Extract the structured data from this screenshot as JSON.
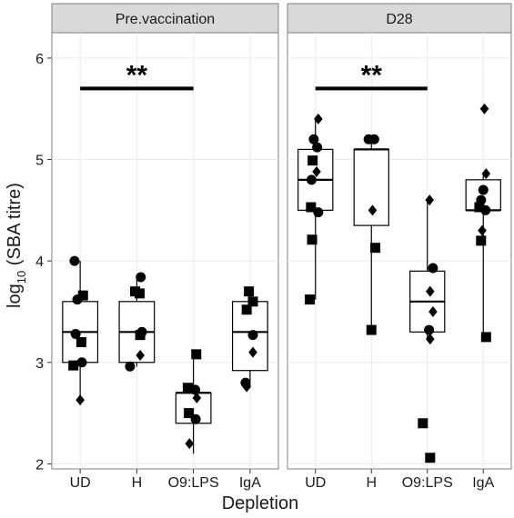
{
  "chart_data": {
    "type": "box",
    "xlabel": "Depletion",
    "ylabel_main": "log",
    "ylabel_sub": "10",
    "ylabel_rest": " (SBA titre)",
    "ylim": [
      1.95,
      6.25
    ],
    "yticks": [
      2,
      3,
      4,
      5,
      6
    ],
    "categories": [
      "UD",
      "H",
      "O9:LPS",
      "IgA"
    ],
    "grid": true,
    "panels": [
      {
        "name": "Pre.vaccination",
        "significance": {
          "from": "UD",
          "to": "O9:LPS",
          "y": 5.7,
          "label": "**"
        },
        "boxes": [
          {
            "category": "UD",
            "q1": 3.0,
            "median": 3.3,
            "q3": 3.6,
            "lower": 2.63,
            "upper": 4.0
          },
          {
            "category": "H",
            "q1": 3.0,
            "median": 3.3,
            "q3": 3.6,
            "lower": 2.96,
            "upper": 3.84
          },
          {
            "category": "O9:LPS",
            "q1": 2.4,
            "median": 2.7,
            "q3": 2.7,
            "lower": 2.1,
            "upper": 3.08
          },
          {
            "category": "IgA",
            "q1": 2.92,
            "median": 3.3,
            "q3": 3.6,
            "lower": 2.75,
            "upper": 3.7
          }
        ],
        "points": [
          {
            "category": "UD",
            "dx": -0.1,
            "y": 4.0,
            "shape": "circle"
          },
          {
            "category": "UD",
            "dx": 0.05,
            "y": 3.66,
            "shape": "square"
          },
          {
            "category": "UD",
            "dx": -0.05,
            "y": 3.62,
            "shape": "circle"
          },
          {
            "category": "UD",
            "dx": -0.08,
            "y": 3.28,
            "shape": "circle"
          },
          {
            "category": "UD",
            "dx": 0.02,
            "y": 3.2,
            "shape": "square"
          },
          {
            "category": "UD",
            "dx": 0.03,
            "y": 3.0,
            "shape": "circle"
          },
          {
            "category": "UD",
            "dx": -0.12,
            "y": 2.97,
            "shape": "square"
          },
          {
            "category": "UD",
            "dx": 0.0,
            "y": 2.63,
            "shape": "diamond"
          },
          {
            "category": "H",
            "dx": 0.07,
            "y": 3.84,
            "shape": "circle"
          },
          {
            "category": "H",
            "dx": -0.03,
            "y": 3.7,
            "shape": "square"
          },
          {
            "category": "H",
            "dx": 0.05,
            "y": 3.68,
            "shape": "square"
          },
          {
            "category": "H",
            "dx": 0.09,
            "y": 3.3,
            "shape": "circle"
          },
          {
            "category": "H",
            "dx": 0.06,
            "y": 3.27,
            "shape": "square"
          },
          {
            "category": "H",
            "dx": 0.06,
            "y": 3.07,
            "shape": "diamond"
          },
          {
            "category": "H",
            "dx": -0.12,
            "y": 2.96,
            "shape": "circle"
          },
          {
            "category": "O9:LPS",
            "dx": 0.05,
            "y": 3.08,
            "shape": "square"
          },
          {
            "category": "O9:LPS",
            "dx": -0.1,
            "y": 2.75,
            "shape": "square"
          },
          {
            "category": "O9:LPS",
            "dx": 0.03,
            "y": 2.73,
            "shape": "circle"
          },
          {
            "category": "O9:LPS",
            "dx": 0.06,
            "y": 2.65,
            "shape": "diamond"
          },
          {
            "category": "O9:LPS",
            "dx": -0.08,
            "y": 2.5,
            "shape": "square"
          },
          {
            "category": "O9:LPS",
            "dx": 0.04,
            "y": 2.44,
            "shape": "circle"
          },
          {
            "category": "O9:LPS",
            "dx": -0.07,
            "y": 2.2,
            "shape": "diamond"
          },
          {
            "category": "IgA",
            "dx": -0.02,
            "y": 3.7,
            "shape": "square"
          },
          {
            "category": "IgA",
            "dx": -0.06,
            "y": 3.52,
            "shape": "square"
          },
          {
            "category": "IgA",
            "dx": 0.05,
            "y": 3.6,
            "shape": "square"
          },
          {
            "category": "IgA",
            "dx": 0.05,
            "y": 3.27,
            "shape": "circle"
          },
          {
            "category": "IgA",
            "dx": 0.05,
            "y": 3.1,
            "shape": "diamond"
          },
          {
            "category": "IgA",
            "dx": -0.08,
            "y": 2.8,
            "shape": "circle"
          },
          {
            "category": "IgA",
            "dx": -0.06,
            "y": 2.76,
            "shape": "diamond"
          }
        ]
      },
      {
        "name": "D28",
        "significance": {
          "from": "UD",
          "to": "O9:LPS",
          "y": 5.7,
          "label": "**"
        },
        "boxes": [
          {
            "category": "UD",
            "q1": 4.5,
            "median": 4.8,
            "q3": 5.1,
            "lower": 3.62,
            "upper": 5.4
          },
          {
            "category": "H",
            "q1": 4.35,
            "median": 5.1,
            "q3": 5.1,
            "lower": 3.32,
            "upper": 5.2
          },
          {
            "category": "O9:LPS",
            "q1": 3.3,
            "median": 3.6,
            "q3": 3.9,
            "lower": 3.22,
            "upper": 4.6
          },
          {
            "category": "IgA",
            "q1": 4.5,
            "median": 4.5,
            "q3": 4.8,
            "lower": 3.25,
            "upper": 4.85
          }
        ],
        "points": [
          {
            "category": "UD",
            "dx": 0.05,
            "y": 5.4,
            "shape": "diamond"
          },
          {
            "category": "UD",
            "dx": -0.03,
            "y": 5.2,
            "shape": "circle"
          },
          {
            "category": "UD",
            "dx": 0.03,
            "y": 5.12,
            "shape": "circle"
          },
          {
            "category": "UD",
            "dx": -0.05,
            "y": 4.99,
            "shape": "square"
          },
          {
            "category": "UD",
            "dx": 0.02,
            "y": 4.88,
            "shape": "diamond"
          },
          {
            "category": "UD",
            "dx": -0.07,
            "y": 4.8,
            "shape": "circle"
          },
          {
            "category": "UD",
            "dx": -0.08,
            "y": 4.53,
            "shape": "square"
          },
          {
            "category": "UD",
            "dx": 0.05,
            "y": 4.48,
            "shape": "circle"
          },
          {
            "category": "UD",
            "dx": -0.06,
            "y": 4.21,
            "shape": "square"
          },
          {
            "category": "UD",
            "dx": -0.1,
            "y": 3.62,
            "shape": "square"
          },
          {
            "category": "H",
            "dx": -0.05,
            "y": 5.2,
            "shape": "circle"
          },
          {
            "category": "H",
            "dx": 0.05,
            "y": 5.2,
            "shape": "circle"
          },
          {
            "category": "H",
            "dx": 0.02,
            "y": 4.5,
            "shape": "diamond"
          },
          {
            "category": "H",
            "dx": 0.07,
            "y": 4.13,
            "shape": "square"
          },
          {
            "category": "H",
            "dx": 0.0,
            "y": 3.32,
            "shape": "square"
          },
          {
            "category": "O9:LPS",
            "dx": 0.04,
            "y": 4.6,
            "shape": "diamond"
          },
          {
            "category": "O9:LPS",
            "dx": 0.1,
            "y": 3.93,
            "shape": "circle"
          },
          {
            "category": "O9:LPS",
            "dx": 0.05,
            "y": 3.7,
            "shape": "diamond"
          },
          {
            "category": "O9:LPS",
            "dx": 0.1,
            "y": 3.5,
            "shape": "diamond"
          },
          {
            "category": "O9:LPS",
            "dx": 0.03,
            "y": 3.32,
            "shape": "circle"
          },
          {
            "category": "O9:LPS",
            "dx": 0.05,
            "y": 3.23,
            "shape": "diamond"
          },
          {
            "category": "O9:LPS",
            "dx": -0.08,
            "y": 2.4,
            "shape": "square"
          },
          {
            "category": "O9:LPS",
            "dx": 0.05,
            "y": 2.06,
            "shape": "square"
          },
          {
            "category": "IgA",
            "dx": 0.02,
            "y": 5.5,
            "shape": "diamond"
          },
          {
            "category": "IgA",
            "dx": 0.05,
            "y": 4.86,
            "shape": "diamond"
          },
          {
            "category": "IgA",
            "dx": 0.0,
            "y": 4.7,
            "shape": "circle"
          },
          {
            "category": "IgA",
            "dx": -0.04,
            "y": 4.6,
            "shape": "circle"
          },
          {
            "category": "IgA",
            "dx": -0.07,
            "y": 4.53,
            "shape": "square"
          },
          {
            "category": "IgA",
            "dx": 0.04,
            "y": 4.5,
            "shape": "circle"
          },
          {
            "category": "IgA",
            "dx": -0.02,
            "y": 4.3,
            "shape": "diamond"
          },
          {
            "category": "IgA",
            "dx": -0.04,
            "y": 4.2,
            "shape": "square"
          },
          {
            "category": "IgA",
            "dx": 0.05,
            "y": 3.25,
            "shape": "square"
          }
        ]
      }
    ]
  }
}
